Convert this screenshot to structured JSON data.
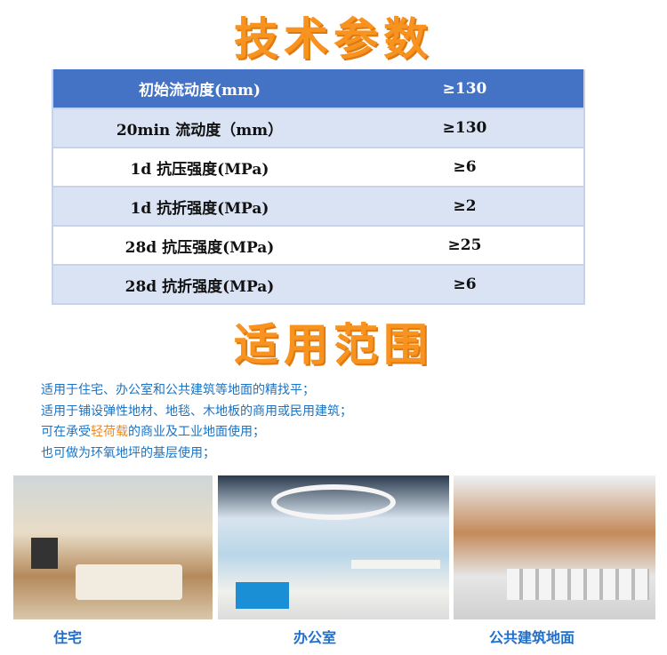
{
  "sections": {
    "spec_title": "技术参数",
    "scope_title": "适用范围"
  },
  "table": {
    "header": {
      "name": "初始流动度(mm)",
      "value": "≥130"
    },
    "rows": [
      {
        "name": "20min 流动度（mm）",
        "value": "≥130"
      },
      {
        "name": "1d 抗压强度(MPa)",
        "value": "≥6"
      },
      {
        "name": "1d 抗折强度(MPa)",
        "value": "≥2"
      },
      {
        "name": "28d 抗压强度(MPa)",
        "value": "≥25"
      },
      {
        "name": "28d 抗折强度(MPa)",
        "value": "≥6"
      }
    ]
  },
  "uses": {
    "line1": "适用于住宅、办公室和公共建筑等地面的精找平；",
    "line2": "适用于铺设弹性地材、地毯、木地板的商用或民用建筑；",
    "line3_pre": "可在承受",
    "line3_hl": "轻荷载",
    "line3_post": "的商业及工业地面使用；",
    "line4": "也可做为环氧地坪的基层使用；"
  },
  "photos": [
    {
      "caption": "住宅"
    },
    {
      "caption": "办公室"
    },
    {
      "caption": "公共建筑地面"
    }
  ],
  "colors": {
    "title": "#f7931e",
    "header": "#4472c4",
    "stripe": "#dae3f3",
    "text_blue": "#1a73c4"
  }
}
